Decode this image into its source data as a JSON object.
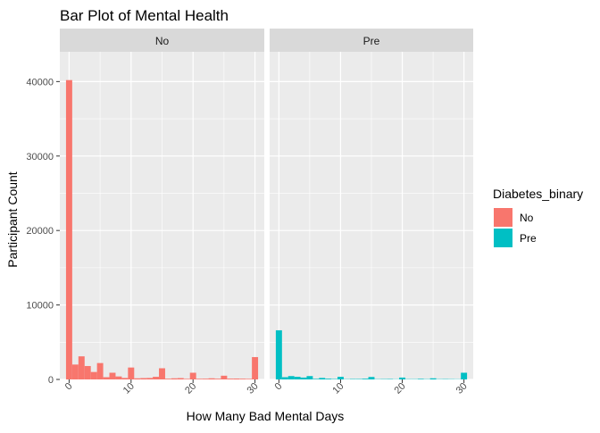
{
  "chart_data": {
    "type": "bar",
    "title": "Bar Plot of Mental Health",
    "xlabel": "How Many Bad Mental Days",
    "ylabel": "Participant Count",
    "ylim": [
      0,
      44000
    ],
    "xlim": [
      -1.5,
      31.5
    ],
    "grid": true,
    "legend_position": "right",
    "legend_title": "Diabetes_binary",
    "x_ticks": [
      0,
      10,
      20,
      30
    ],
    "y_ticks": [
      0,
      10000,
      20000,
      30000,
      40000
    ],
    "x_tick_labels": [
      "0",
      "10",
      "20",
      "30"
    ],
    "y_tick_labels": [
      "0",
      "10000",
      "20000",
      "30000",
      "40000"
    ],
    "x": [
      0,
      1,
      2,
      3,
      4,
      5,
      6,
      7,
      8,
      9,
      10,
      11,
      12,
      13,
      14,
      15,
      16,
      17,
      18,
      19,
      20,
      21,
      22,
      23,
      24,
      25,
      26,
      27,
      28,
      29,
      30
    ],
    "series": [
      {
        "name": "No",
        "facet": "No",
        "color": "#F8766D",
        "values": [
          40200,
          2000,
          3100,
          1800,
          1000,
          2200,
          300,
          900,
          400,
          200,
          1600,
          150,
          180,
          200,
          350,
          1500,
          100,
          150,
          180,
          80,
          900,
          90,
          100,
          150,
          100,
          500,
          110,
          120,
          100,
          80,
          3000
        ]
      },
      {
        "name": "Pre",
        "facet": "Pre",
        "color": "#00BFC4",
        "values": [
          6600,
          300,
          450,
          350,
          250,
          450,
          80,
          200,
          100,
          60,
          350,
          40,
          60,
          60,
          100,
          330,
          40,
          50,
          60,
          30,
          250,
          40,
          40,
          80,
          40,
          150,
          40,
          50,
          40,
          30,
          900
        ]
      }
    ]
  }
}
